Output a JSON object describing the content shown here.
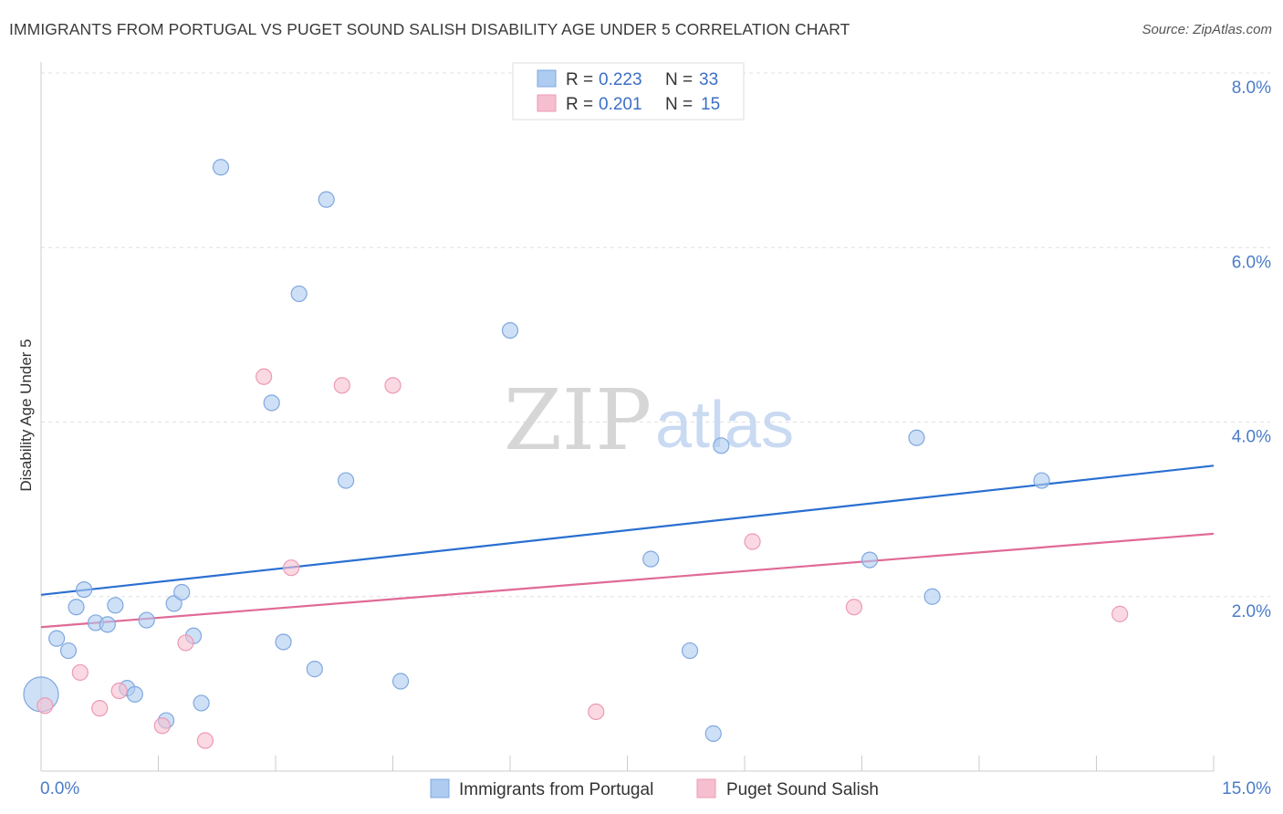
{
  "title": "IMMIGRANTS FROM PORTUGAL VS PUGET SOUND SALISH DISABILITY AGE UNDER 5 CORRELATION CHART",
  "source": "Source: ZipAtlas.com",
  "watermark": {
    "zip": "ZIP",
    "atlas": "atlas"
  },
  "colors": {
    "blue_fill": "#aecbf0",
    "blue_stroke": "#7fa8e0",
    "blue_line": "#2a6fd1",
    "pink_fill": "#f6bfd0",
    "pink_stroke": "#ec9ab5",
    "pink_line": "#e06a96",
    "grid": "#e0e0e0",
    "tick_label": "#4a7cc9"
  },
  "legend": {
    "rows": [
      {
        "r_label": "R =",
        "r_value": "0.223",
        "n_label": "N =",
        "n_value": "33"
      },
      {
        "r_label": "R =",
        "r_value": "0.201",
        "n_label": "N =",
        "n_value": "15"
      }
    ]
  },
  "chart_data": {
    "type": "scatter",
    "xlabel": "",
    "ylabel": "Disability Age Under 5",
    "xlim": [
      0,
      15
    ],
    "ylim": [
      0,
      8
    ],
    "x_tick_labels": [
      {
        "value": 0,
        "label": "0.0%"
      },
      {
        "value": 15,
        "label": "15.0%"
      }
    ],
    "y_tick_labels": [
      {
        "value": 2,
        "label": "2.0%"
      },
      {
        "value": 4,
        "label": "4.0%"
      },
      {
        "value": 6,
        "label": "6.0%"
      },
      {
        "value": 8,
        "label": "8.0%"
      }
    ],
    "legend_position": "top-center",
    "series": [
      {
        "name": "Immigrants from Portugal",
        "color": "blue",
        "trend": [
          [
            0,
            2.02
          ],
          [
            15,
            3.5
          ]
        ],
        "points": [
          [
            0.0,
            0.88,
            "large"
          ],
          [
            0.2,
            1.52
          ],
          [
            0.35,
            1.38
          ],
          [
            0.45,
            1.88
          ],
          [
            0.55,
            2.08
          ],
          [
            0.7,
            1.7
          ],
          [
            0.85,
            1.68
          ],
          [
            0.95,
            1.9
          ],
          [
            1.1,
            0.95
          ],
          [
            1.2,
            0.88
          ],
          [
            1.35,
            1.73
          ],
          [
            1.6,
            0.58
          ],
          [
            1.7,
            1.92
          ],
          [
            1.8,
            2.05
          ],
          [
            1.95,
            1.55
          ],
          [
            2.05,
            0.78
          ],
          [
            2.3,
            6.92
          ],
          [
            2.95,
            4.22
          ],
          [
            3.1,
            1.48
          ],
          [
            3.3,
            5.47
          ],
          [
            3.5,
            1.17
          ],
          [
            3.65,
            6.55
          ],
          [
            3.9,
            3.33
          ],
          [
            4.6,
            1.03
          ],
          [
            6.0,
            5.05
          ],
          [
            7.8,
            2.43
          ],
          [
            8.3,
            1.38
          ],
          [
            8.6,
            0.43
          ],
          [
            8.7,
            3.73
          ],
          [
            10.6,
            2.42
          ],
          [
            11.2,
            3.82
          ],
          [
            11.4,
            2.0
          ],
          [
            12.8,
            3.33
          ]
        ]
      },
      {
        "name": "Puget Sound Salish",
        "color": "pink",
        "trend": [
          [
            0,
            1.65
          ],
          [
            15,
            2.72
          ]
        ],
        "points": [
          [
            0.05,
            0.75
          ],
          [
            0.5,
            1.13
          ],
          [
            0.75,
            0.72
          ],
          [
            1.0,
            0.92
          ],
          [
            1.55,
            0.52
          ],
          [
            1.85,
            1.47
          ],
          [
            2.1,
            0.35
          ],
          [
            2.85,
            4.52
          ],
          [
            3.2,
            2.33
          ],
          [
            3.85,
            4.42
          ],
          [
            4.5,
            4.42
          ],
          [
            7.1,
            0.68
          ],
          [
            9.1,
            2.63
          ],
          [
            10.4,
            1.88
          ],
          [
            13.8,
            1.8
          ]
        ]
      }
    ]
  }
}
